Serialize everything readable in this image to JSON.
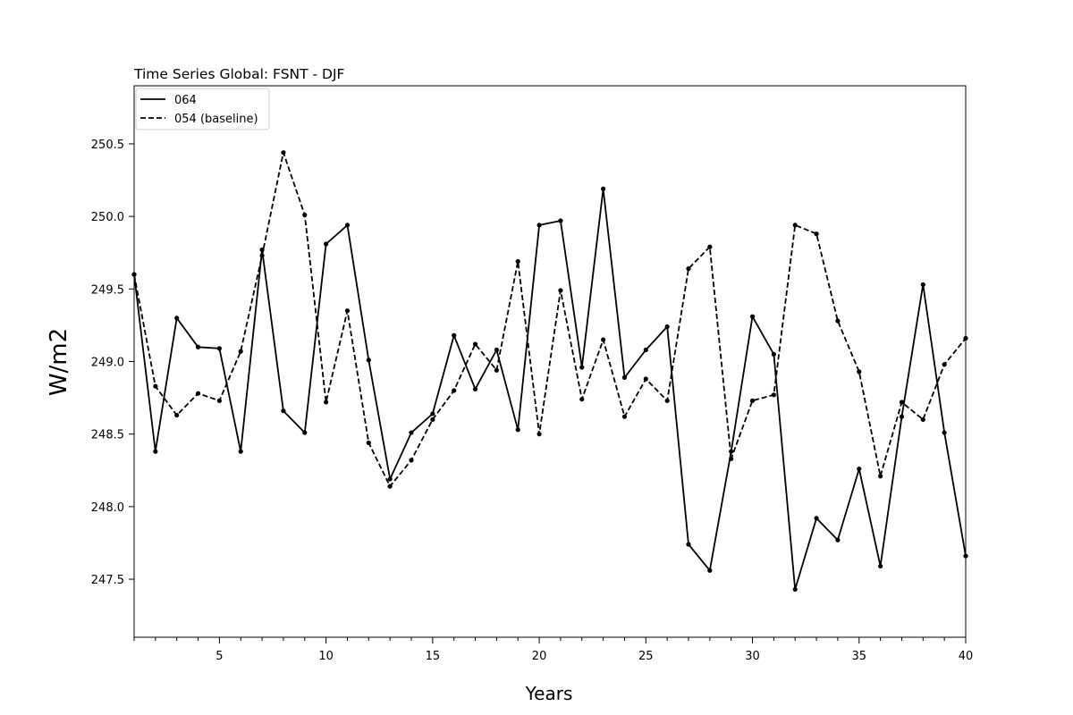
{
  "chart_data": {
    "type": "line",
    "title": "Time Series Global: FSNT - DJF",
    "xlabel": "Years",
    "ylabel": "W/m2",
    "xlim": [
      1,
      40
    ],
    "ylim": [
      247.1,
      250.9
    ],
    "x_major_ticks": [
      5,
      10,
      15,
      20,
      25,
      30,
      35,
      40
    ],
    "y_major_ticks": [
      247.5,
      248.0,
      248.5,
      249.0,
      249.5,
      250.0,
      250.5
    ],
    "x_tick_labels": [
      "5",
      "10",
      "15",
      "20",
      "25",
      "30",
      "35",
      "40"
    ],
    "y_tick_labels": [
      "247.5",
      "248.0",
      "248.5",
      "249.0",
      "249.5",
      "250.0",
      "250.5"
    ],
    "grid": false,
    "legend_position": "top-left",
    "x": [
      1,
      2,
      3,
      4,
      5,
      6,
      7,
      8,
      9,
      10,
      11,
      12,
      13,
      14,
      15,
      16,
      17,
      18,
      19,
      20,
      21,
      22,
      23,
      24,
      25,
      26,
      27,
      28,
      29,
      30,
      31,
      32,
      33,
      34,
      35,
      36,
      37,
      38,
      39,
      40
    ],
    "series": [
      {
        "name": "064",
        "style": "solid",
        "color": "#000000",
        "values": [
          249.6,
          248.38,
          249.3,
          249.1,
          249.09,
          248.38,
          249.77,
          248.66,
          248.51,
          249.81,
          249.94,
          249.01,
          248.19,
          248.51,
          248.64,
          249.18,
          248.81,
          249.08,
          248.53,
          249.94,
          249.97,
          248.96,
          250.19,
          248.89,
          249.08,
          249.24,
          247.74,
          247.56,
          248.38,
          249.31,
          249.05,
          247.43,
          247.92,
          247.77,
          248.26,
          247.59,
          248.62,
          249.53,
          248.51,
          247.66
        ]
      },
      {
        "name": "054 (baseline)",
        "style": "dashed",
        "color": "#000000",
        "values": [
          249.6,
          248.83,
          248.63,
          248.78,
          248.73,
          249.07,
          249.73,
          250.44,
          250.01,
          248.72,
          249.35,
          248.44,
          248.14,
          248.32,
          248.6,
          248.8,
          249.12,
          248.94,
          249.69,
          248.5,
          249.49,
          248.74,
          249.15,
          248.62,
          248.88,
          248.73,
          249.64,
          249.79,
          248.33,
          248.73,
          248.77,
          249.94,
          249.88,
          249.28,
          248.93,
          248.21,
          248.72,
          248.6,
          248.98,
          249.16
        ]
      }
    ]
  }
}
